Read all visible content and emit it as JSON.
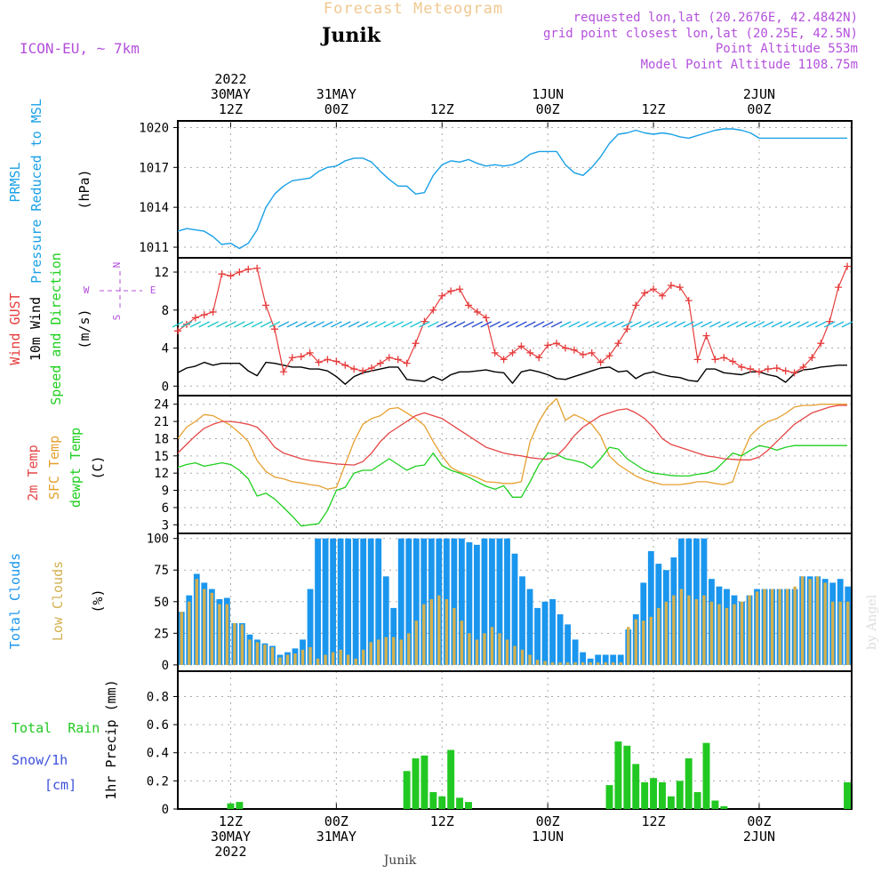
{
  "header": {
    "title": "Forecast Meteogram",
    "location": "Junik",
    "model": "ICON-EU, ~ 7km",
    "requested": "requested lon,lat (20.2676E, 42.4842N)",
    "gridpoint": "grid point closest lon,lat (20.25E, 42.5N)",
    "point_altitude": "Point Altitude 553m",
    "model_altitude": "Model Point Altitude 1108.75m",
    "footer_location": "Junik",
    "watermark": "by Angel"
  },
  "time_axis": {
    "top_labels": [
      {
        "hour": 6,
        "lines": [
          "2022",
          "30MAY",
          "12Z"
        ]
      },
      {
        "hour": 18,
        "lines": [
          "31MAY",
          "00Z"
        ]
      },
      {
        "hour": 30,
        "lines": [
          "12Z"
        ]
      },
      {
        "hour": 42,
        "lines": [
          "1JUN",
          "00Z"
        ]
      },
      {
        "hour": 54,
        "lines": [
          "12Z"
        ]
      },
      {
        "hour": 66,
        "lines": [
          "2JUN",
          "00Z"
        ]
      }
    ],
    "bottom_labels": [
      {
        "hour": 6,
        "lines": [
          "12Z",
          "30MAY",
          "2022"
        ]
      },
      {
        "hour": 18,
        "lines": [
          "00Z",
          "31MAY"
        ]
      },
      {
        "hour": 30,
        "lines": [
          "12Z"
        ]
      },
      {
        "hour": 42,
        "lines": [
          "00Z",
          "1JUN"
        ]
      },
      {
        "hour": 54,
        "lines": [
          "12Z"
        ]
      },
      {
        "hour": 66,
        "lines": [
          "00Z",
          "2JUN"
        ]
      }
    ]
  },
  "panel_labels": {
    "pressure": {
      "series": "PRMSL",
      "desc": "Pressure Reduced to MSL",
      "unit": "(hPa)"
    },
    "wind": {
      "gust": "Wind GUST",
      "wind10": "10m Wind",
      "dir": "Speed and Direction",
      "unit": "(m/s)",
      "compass_n": "N",
      "compass_s": "S",
      "compass_w": "W",
      "compass_e": "E"
    },
    "temp": {
      "t2m": "2m Temp",
      "sfc": "SFC Temp",
      "dew": "dewpt Temp",
      "unit": "(C)"
    },
    "clouds": {
      "total": "Total Clouds",
      "low": "Low Clouds",
      "unit": "(%)"
    },
    "precip": {
      "rain": "Total  Rain",
      "snow": "Snow/1h",
      "snow_unit": "[cm]",
      "ylabel": "1hr Precip (mm)"
    }
  },
  "colors": {
    "pressure": "#1aa0e6",
    "gust": "#e63c3c",
    "wind10": "#000000",
    "t2m": "#e64646",
    "sfc": "#e6a030",
    "dew": "#1ecf1e",
    "total_clouds": "#1a96ee",
    "low_clouds": "#d2b050",
    "rain": "#22c822",
    "snow": "#3c50dc",
    "title": "#f0c890",
    "meta": "#b450dc"
  },
  "chart_data": [
    {
      "type": "line",
      "name": "pressure",
      "ylabel": "(hPa)",
      "yticks": [
        1011,
        1014,
        1017,
        1020
      ],
      "ylim": [
        1010.2,
        1020.5
      ],
      "x": [
        0,
        1,
        2,
        3,
        4,
        5,
        6,
        7,
        8,
        9,
        10,
        11,
        12,
        13,
        14,
        15,
        16,
        17,
        18,
        19,
        20,
        21,
        22,
        23,
        24,
        25,
        26,
        27,
        28,
        29,
        30,
        31,
        32,
        33,
        34,
        35,
        36,
        37,
        38,
        39,
        40,
        41,
        42,
        43,
        44,
        45,
        46,
        47,
        48,
        49,
        50,
        51,
        52,
        53,
        54,
        55,
        56,
        57,
        58,
        59,
        60,
        61,
        62,
        63,
        64,
        65,
        66,
        67,
        68,
        69,
        70,
        71,
        72,
        73,
        74,
        75,
        76
      ],
      "values": [
        1012.2,
        1012.4,
        1012.3,
        1012.2,
        1011.8,
        1011.2,
        1011.3,
        1010.9,
        1011.3,
        1012.3,
        1014.0,
        1015.0,
        1015.6,
        1016.0,
        1016.1,
        1016.2,
        1016.7,
        1017.0,
        1017.1,
        1017.5,
        1017.7,
        1017.7,
        1017.4,
        1016.7,
        1016.1,
        1015.6,
        1015.6,
        1015.0,
        1015.1,
        1016.4,
        1017.2,
        1017.5,
        1017.4,
        1017.6,
        1017.3,
        1017.1,
        1017.2,
        1017.1,
        1017.2,
        1017.5,
        1018.0,
        1018.2,
        1018.2,
        1018.2,
        1017.2,
        1016.6,
        1016.4,
        1017.0,
        1017.8,
        1018.8,
        1019.5,
        1019.6,
        1019.8,
        1019.6,
        1019.5,
        1019.6,
        1019.5,
        1019.3,
        1019.2,
        1019.4,
        1019.6,
        1019.8,
        1019.9,
        1019.9,
        1019.8,
        1019.6,
        1019.2,
        1019.2,
        1019.2,
        1019.2,
        1019.2,
        1019.2,
        1019.2,
        1019.2,
        1019.2,
        1019.2,
        1019.2
      ]
    },
    {
      "type": "line",
      "name": "wind",
      "ylabel": "(m/s)",
      "yticks": [
        0,
        4,
        8,
        12
      ],
      "ylim": [
        -1,
        13.5
      ],
      "x_start": 0,
      "gust": [
        5.8,
        6.5,
        7.2,
        7.5,
        7.8,
        11.8,
        11.6,
        12.0,
        12.3,
        12.4,
        8.5,
        6.0,
        1.5,
        3.0,
        3.1,
        3.5,
        2.5,
        2.8,
        2.6,
        2.2,
        1.8,
        1.6,
        1.9,
        2.4,
        3.0,
        2.8,
        2.4,
        4.5,
        6.8,
        8.0,
        9.5,
        10.0,
        10.2,
        8.5,
        7.8,
        7.2,
        3.5,
        2.8,
        3.5,
        4.2,
        3.5,
        3.0,
        4.3,
        4.5,
        4.0,
        3.8,
        3.3,
        3.5,
        2.5,
        3.2,
        4.5,
        6.0,
        8.5,
        9.8,
        10.2,
        9.5,
        10.6,
        10.4,
        9.0,
        2.8,
        5.3,
        2.8,
        3.0,
        2.6,
        2.0,
        1.8,
        1.5,
        1.8,
        1.9,
        1.6,
        1.4,
        2.0,
        3.0,
        4.5,
        6.8,
        10.4,
        12.6
      ],
      "wind10": [
        1.4,
        1.9,
        2.1,
        2.5,
        2.2,
        2.4,
        2.4,
        2.4,
        1.6,
        1.1,
        2.5,
        2.4,
        2.2,
        2.0,
        2.0,
        1.8,
        1.8,
        1.6,
        1.0,
        0.2,
        1.0,
        1.4,
        1.6,
        1.8,
        2.0,
        2.0,
        0.7,
        0.6,
        0.5,
        1.0,
        0.6,
        1.2,
        1.5,
        1.5,
        1.6,
        1.7,
        1.5,
        1.4,
        0.3,
        1.5,
        1.7,
        1.5,
        1.2,
        0.8,
        0.7,
        1.0,
        1.3,
        1.6,
        1.9,
        2.0,
        1.5,
        1.6,
        0.8,
        1.3,
        1.5,
        1.2,
        1.0,
        0.9,
        0.6,
        0.5,
        1.8,
        1.8,
        1.4,
        1.3,
        1.2,
        1.5,
        1.5,
        1.2,
        1.0,
        0.4,
        1.3,
        1.7,
        1.8,
        2.0,
        2.1,
        2.2,
        2.2
      ],
      "direction_arrow_y": 6.5
    },
    {
      "type": "line",
      "name": "temperature",
      "ylabel": "(C)",
      "yticks": [
        3,
        6,
        9,
        12,
        15,
        18,
        21,
        24
      ],
      "ylim": [
        1.5,
        25.5
      ],
      "t2m": [
        15.5,
        17,
        18.5,
        19.8,
        20.5,
        21,
        21,
        20.8,
        20.5,
        20,
        18.5,
        16.5,
        15.5,
        15,
        14.5,
        14.2,
        14,
        13.8,
        13.6,
        13.5,
        13.4,
        14,
        15.5,
        17.5,
        19,
        20,
        21,
        22,
        22.5,
        22,
        21.5,
        20.5,
        19.5,
        18.5,
        17.5,
        16.5,
        16,
        15.5,
        15.2,
        15,
        14.7,
        14.5,
        14.4,
        15,
        16.5,
        18.5,
        20,
        21,
        22,
        22.5,
        23,
        23.2,
        22.5,
        21.5,
        20,
        18,
        17,
        16.5,
        16,
        15.5,
        15,
        14.8,
        14.5,
        14.4,
        14.3,
        14.3,
        14.8,
        16,
        17.5,
        19,
        20.5,
        21.5,
        22.5,
        23,
        23.5,
        23.8,
        23.8
      ],
      "sfc": [
        18,
        20,
        21,
        22.2,
        22,
        21.2,
        20.3,
        19,
        17.5,
        14.2,
        12.3,
        11.3,
        11,
        10.5,
        10.3,
        10,
        9.8,
        9.2,
        9.5,
        13.5,
        17.5,
        20.5,
        21.5,
        22,
        23.2,
        23.4,
        22.5,
        21.5,
        20.3,
        17.5,
        15,
        13,
        12.2,
        11.8,
        11.2,
        10.5,
        10.4,
        10.2,
        10.2,
        10.5,
        17.5,
        21,
        23.5,
        25,
        21.2,
        22.2,
        21.5,
        20.5,
        18.5,
        15,
        13.5,
        12.5,
        11.5,
        10.8,
        10.4,
        10,
        10,
        10,
        10.2,
        10.5,
        10.5,
        10.2,
        10,
        10.5,
        15,
        18.5,
        20,
        21,
        21.5,
        22.4,
        23.5,
        23.8,
        23.8,
        24,
        24,
        24,
        24
      ],
      "dew": [
        13,
        13.5,
        13.8,
        13.2,
        13.5,
        13.8,
        13.5,
        12.5,
        11,
        8,
        8.5,
        7.5,
        6,
        4.5,
        2.8,
        3,
        3.2,
        5.5,
        9,
        9.5,
        12,
        12.5,
        12.5,
        13.5,
        14.5,
        13.5,
        12.5,
        13.2,
        13.4,
        15.5,
        13.3,
        12.5,
        12,
        11.3,
        10.5,
        9.7,
        9.2,
        9.8,
        7.8,
        7.8,
        10.5,
        13.5,
        15.5,
        15.3,
        14.5,
        14.2,
        13.8,
        12.9,
        14.5,
        16.5,
        16.2,
        14.5,
        13.5,
        12.5,
        12,
        11.8,
        11.6,
        11.5,
        11.5,
        11.8,
        12,
        12.5,
        14,
        15.5,
        15,
        16,
        16.8,
        16.5,
        16,
        16.5,
        16.8,
        16.8,
        16.8,
        16.8,
        16.8,
        16.8,
        16.8
      ]
    },
    {
      "type": "bar",
      "name": "clouds",
      "ylabel": "(%)",
      "yticks": [
        0,
        25,
        50,
        75,
        100
      ],
      "ylim": [
        -5,
        104
      ],
      "total": [
        42,
        55,
        72,
        65,
        60,
        52,
        53,
        33,
        33,
        24,
        20,
        17,
        15,
        8,
        10,
        13,
        20,
        60,
        100,
        100,
        100,
        100,
        100,
        100,
        100,
        100,
        100,
        70,
        45,
        100,
        100,
        100,
        100,
        100,
        100,
        100,
        100,
        100,
        97,
        95,
        100,
        100,
        100,
        100,
        88,
        70,
        60,
        45,
        50,
        52,
        40,
        32,
        20,
        10,
        5,
        8,
        8,
        8,
        8,
        28,
        40,
        65,
        90,
        80,
        75,
        85,
        100,
        100,
        100,
        100,
        68,
        62,
        60,
        55,
        50,
        55,
        60,
        60,
        60,
        60,
        60,
        60,
        70,
        70,
        70,
        68,
        65,
        68,
        62
      ],
      "low": [
        42,
        50,
        68,
        60,
        57,
        48,
        48,
        33,
        32,
        20,
        18,
        16,
        14,
        6,
        8,
        9,
        12,
        14,
        5,
        8,
        10,
        12,
        8,
        5,
        12,
        18,
        20,
        22,
        22,
        20,
        25,
        35,
        48,
        52,
        55,
        52,
        45,
        35,
        25,
        20,
        25,
        30,
        25,
        20,
        15,
        12,
        8,
        4,
        3,
        2,
        2,
        2,
        2,
        2,
        2,
        2,
        2,
        2,
        2,
        30,
        36,
        35,
        38,
        45,
        50,
        55,
        60,
        55,
        52,
        55,
        50,
        48,
        45,
        48,
        50,
        55,
        58,
        60,
        60,
        60,
        60,
        62,
        70,
        68,
        70,
        65,
        50,
        50,
        50
      ]
    },
    {
      "type": "bar",
      "name": "precipitation",
      "ylabel": "1hr Precip (mm)",
      "yticks": [
        0,
        0.2,
        0.4,
        0.6,
        0.8
      ],
      "ylim": [
        0,
        0.98
      ],
      "bars": [
        {
          "hour": 6,
          "value": 0.04
        },
        {
          "hour": 7,
          "value": 0.05
        },
        {
          "hour": 26,
          "value": 0.27
        },
        {
          "hour": 27,
          "value": 0.36
        },
        {
          "hour": 28,
          "value": 0.38
        },
        {
          "hour": 29,
          "value": 0.12
        },
        {
          "hour": 30,
          "value": 0.09
        },
        {
          "hour": 31,
          "value": 0.42
        },
        {
          "hour": 32,
          "value": 0.08
        },
        {
          "hour": 33,
          "value": 0.05
        },
        {
          "hour": 49,
          "value": 0.17
        },
        {
          "hour": 50,
          "value": 0.48
        },
        {
          "hour": 51,
          "value": 0.45
        },
        {
          "hour": 52,
          "value": 0.32
        },
        {
          "hour": 53,
          "value": 0.19
        },
        {
          "hour": 54,
          "value": 0.22
        },
        {
          "hour": 55,
          "value": 0.19
        },
        {
          "hour": 56,
          "value": 0.09
        },
        {
          "hour": 57,
          "value": 0.2
        },
        {
          "hour": 58,
          "value": 0.36
        },
        {
          "hour": 59,
          "value": 0.12
        },
        {
          "hour": 60,
          "value": 0.47
        },
        {
          "hour": 61,
          "value": 0.06
        },
        {
          "hour": 62,
          "value": 0.02
        },
        {
          "hour": 76,
          "value": 0.19
        }
      ]
    }
  ]
}
